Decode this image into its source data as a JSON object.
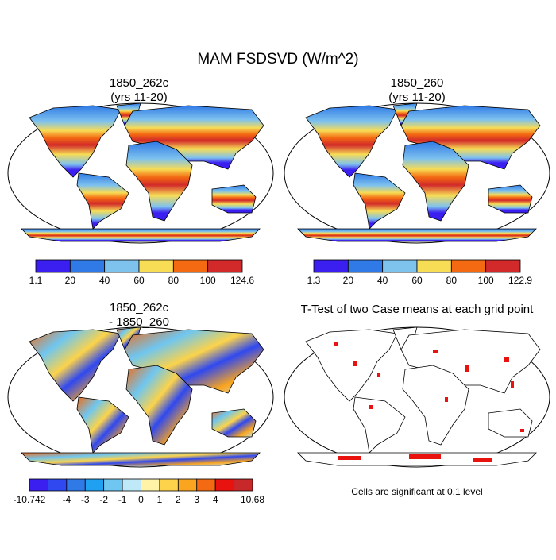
{
  "title": "MAM FSDSVD (W/m^2)",
  "panels": [
    {
      "title": [
        "1850_262c",
        "(yrs 11-20)"
      ],
      "colorbar": {
        "colors": [
          "#3b1ff0",
          "#2f7ae6",
          "#7ec2ee",
          "#f7dc55",
          "#f46a12",
          "#d22a2a"
        ],
        "labels": [
          "1.1",
          "20",
          "40",
          "60",
          "80",
          "100",
          "124.6"
        ]
      }
    },
    {
      "title": [
        "1850_260",
        "(yrs 11-20)"
      ],
      "colorbar": {
        "colors": [
          "#3b1ff0",
          "#2f7ae6",
          "#7ec2ee",
          "#f7dc55",
          "#f46a12",
          "#d22a2a"
        ],
        "labels": [
          "1.3",
          "20",
          "40",
          "60",
          "80",
          "100",
          "122.9"
        ]
      }
    },
    {
      "title": [
        "1850_262c",
        "- 1850_260"
      ],
      "colorbar": {
        "colors": [
          "#3b1ff0",
          "#2f48f0",
          "#2f7ae6",
          "#1fa0f0",
          "#6fc6f0",
          "#bfe8f8",
          "#fff3a8",
          "#fcd34a",
          "#f9a51f",
          "#f46a12",
          "#e8120e",
          "#c8282a"
        ],
        "labels": [
          "-10.742",
          "-4",
          "-3",
          "-2",
          "-1",
          "0",
          "1",
          "2",
          "3",
          "4",
          "10.68"
        ]
      }
    },
    {
      "title": [
        "T-Test of two Case means at each grid point"
      ]
    }
  ],
  "note": "Cells are significant at 0.1 level"
}
